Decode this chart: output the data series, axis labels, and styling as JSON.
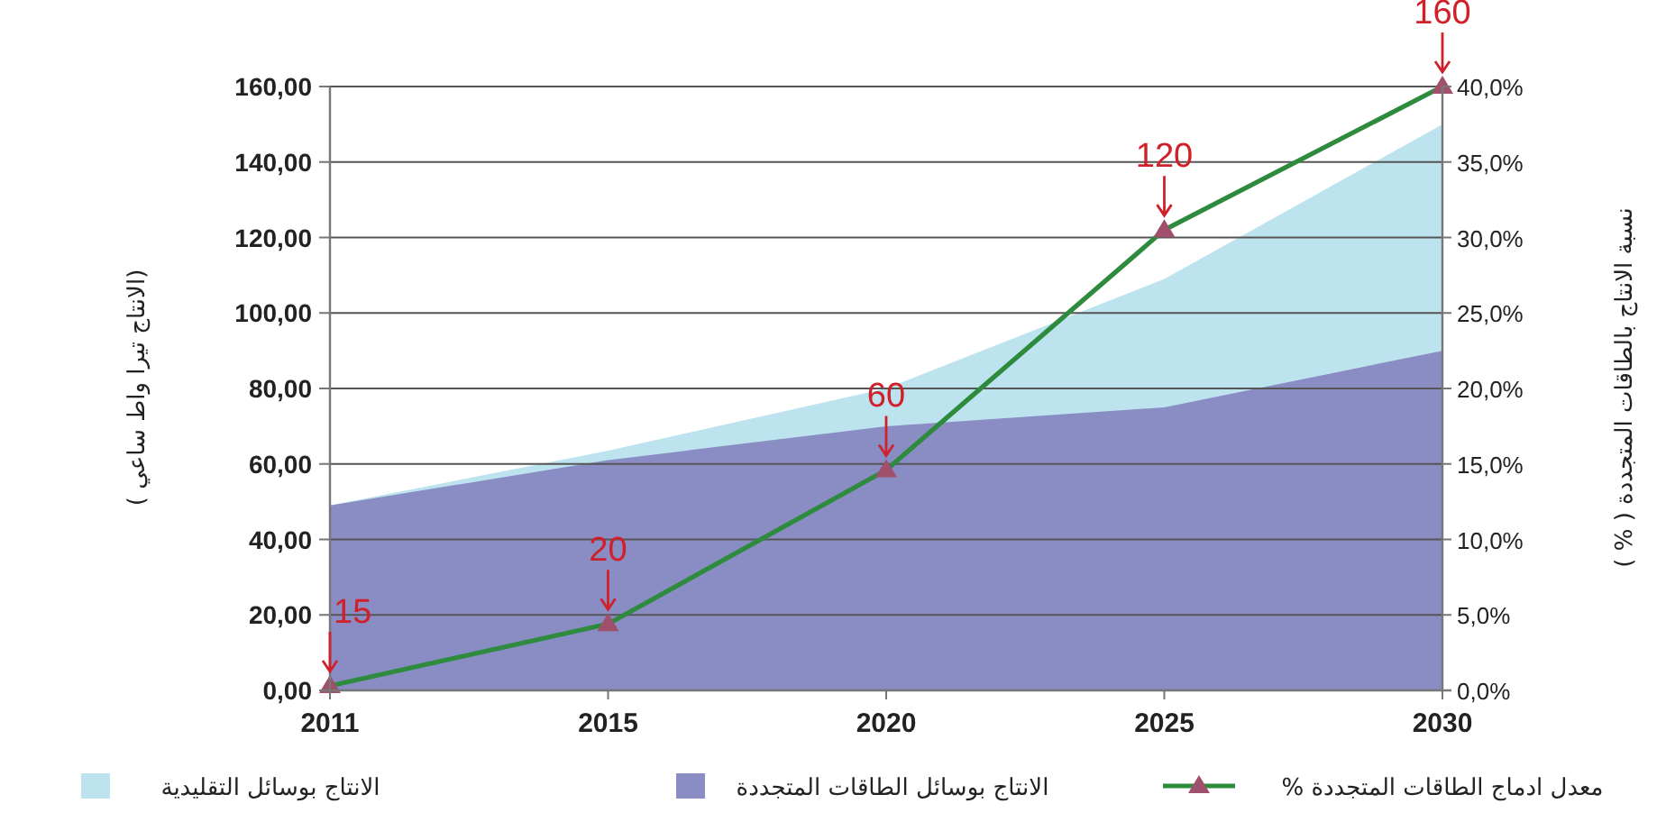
{
  "chart_data": {
    "type": "area",
    "ylabel": "(الانتاج تيرا واط ساعي )",
    "y2label": "نسبة الانتاج بالطاقات المتجددة ( % )",
    "categories": [
      "2011",
      "2015",
      "2020",
      "2025",
      "2030"
    ],
    "series": [
      {
        "name": "الانتاج بوسائل التقليدية",
        "color": "#bde3ee",
        "values": [
          49,
          63.5,
          80,
          109,
          150
        ]
      },
      {
        "name": "الانتاج بوسائل الطاقات المتجددة",
        "color": "#8a8cc4",
        "values": [
          49,
          61,
          70,
          75,
          90
        ]
      },
      {
        "name": "معدل ادماج الطاقات المتجددة %",
        "type": "line",
        "axis": "y2",
        "color": "#2e8b3e",
        "marker": "triangle",
        "line_style": "solid",
        "values": [
          0.3,
          4.4,
          14.6,
          30.5,
          40
        ]
      }
    ],
    "ylim": [
      0,
      160
    ],
    "yticks": [
      {
        "value": 0,
        "label": "0,00"
      },
      {
        "value": 20,
        "label": "20,00"
      },
      {
        "value": 40,
        "label": "40,00"
      },
      {
        "value": 60,
        "label": "60,00"
      },
      {
        "value": 80,
        "label": "80,00"
      },
      {
        "value": 100,
        "label": "100,00"
      },
      {
        "value": 120,
        "label": "120,00"
      },
      {
        "value": 140,
        "label": "140,00"
      },
      {
        "value": 160,
        "label": "160,00"
      }
    ],
    "y2lim": [
      0,
      40
    ],
    "y2ticks": [
      {
        "value": 0,
        "label": "0,0%"
      },
      {
        "value": 5,
        "label": "5,0%"
      },
      {
        "value": 10,
        "label": "10,0%"
      },
      {
        "value": 15,
        "label": "15,0%"
      },
      {
        "value": 20,
        "label": "20,0%"
      },
      {
        "value": 25,
        "label": "25,0%"
      },
      {
        "value": 30,
        "label": "30,0%"
      },
      {
        "value": 35,
        "label": "35,0%"
      },
      {
        "value": 40,
        "label": "40,0%"
      }
    ],
    "annotations": [
      {
        "text": "15",
        "x": "2011",
        "y": 1.2
      },
      {
        "text": "20",
        "x": "2015",
        "y": 17.6
      },
      {
        "text": "60",
        "x": "2020",
        "y": 58.4
      },
      {
        "text": "120",
        "x": "2025",
        "y": 122
      },
      {
        "text": "160",
        "x": "2030",
        "y": 160
      }
    ],
    "grid": "y",
    "legend": "bottom"
  }
}
